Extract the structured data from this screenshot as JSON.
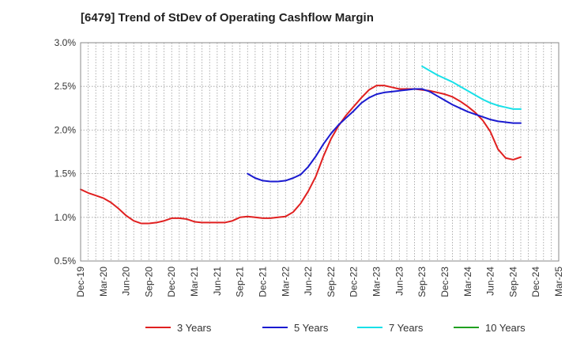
{
  "chart_data": {
    "type": "line",
    "title": "[6479]  Trend of StDev of Operating Cashflow Margin",
    "x_labels": [
      "Dec-19",
      "Mar-20",
      "Jun-20",
      "Sep-20",
      "Dec-20",
      "Mar-21",
      "Jun-21",
      "Sep-21",
      "Dec-21",
      "Mar-22",
      "Jun-22",
      "Sep-22",
      "Dec-22",
      "Mar-23",
      "Jun-23",
      "Sep-23",
      "Dec-23",
      "Mar-24",
      "Jun-24",
      "Sep-24",
      "Dec-24",
      "Mar-25"
    ],
    "y_tick_labels": [
      "0.5%",
      "1.0%",
      "1.5%",
      "2.0%",
      "2.5%",
      "3.0%"
    ],
    "y_ticks": [
      0.5,
      1.0,
      1.5,
      2.0,
      2.5,
      3.0
    ],
    "ylim": [
      0.5,
      3.0
    ],
    "grid": true,
    "legend_position": "bottom",
    "series": [
      {
        "name": "3 Years",
        "color": "#e02020",
        "values": [
          1.32,
          1.28,
          1.25,
          1.22,
          1.17,
          1.1,
          1.02,
          0.96,
          0.93,
          0.93,
          0.94,
          0.96,
          0.99,
          0.99,
          0.98,
          0.95,
          0.94,
          0.94,
          0.94,
          0.94,
          0.96,
          1.0,
          1.01,
          1.0,
          0.99,
          0.99,
          1.0,
          1.01,
          1.06,
          1.16,
          1.3,
          1.47,
          1.7,
          1.9,
          2.05,
          2.17,
          2.27,
          2.37,
          2.46,
          2.51,
          2.51,
          2.49,
          2.47,
          2.47,
          2.47,
          2.46,
          2.45,
          2.43,
          2.41,
          2.38,
          2.33,
          2.27,
          2.2,
          2.11,
          1.98,
          1.78,
          1.68,
          1.66,
          1.69
        ]
      },
      {
        "name": "5 Years",
        "color": "#1a1ad0",
        "values": [
          null,
          null,
          null,
          null,
          null,
          null,
          null,
          null,
          null,
          null,
          null,
          null,
          null,
          null,
          null,
          null,
          null,
          null,
          null,
          null,
          null,
          null,
          1.5,
          1.45,
          1.42,
          1.41,
          1.41,
          1.42,
          1.45,
          1.49,
          1.58,
          1.7,
          1.84,
          1.96,
          2.06,
          2.14,
          2.22,
          2.31,
          2.37,
          2.41,
          2.43,
          2.44,
          2.45,
          2.46,
          2.47,
          2.47,
          2.44,
          2.39,
          2.34,
          2.29,
          2.25,
          2.21,
          2.18,
          2.15,
          2.12,
          2.1,
          2.09,
          2.08,
          2.08
        ]
      },
      {
        "name": "7 Years",
        "color": "#18e0e8",
        "values": [
          null,
          null,
          null,
          null,
          null,
          null,
          null,
          null,
          null,
          null,
          null,
          null,
          null,
          null,
          null,
          null,
          null,
          null,
          null,
          null,
          null,
          null,
          null,
          null,
          null,
          null,
          null,
          null,
          null,
          null,
          null,
          null,
          null,
          null,
          null,
          null,
          null,
          null,
          null,
          null,
          null,
          null,
          null,
          null,
          null,
          2.73,
          2.68,
          2.63,
          2.59,
          2.55,
          2.5,
          2.45,
          2.4,
          2.35,
          2.31,
          2.28,
          2.26,
          2.24,
          2.24
        ]
      },
      {
        "name": "10 Years",
        "color": "#20a020",
        "values": []
      }
    ]
  }
}
